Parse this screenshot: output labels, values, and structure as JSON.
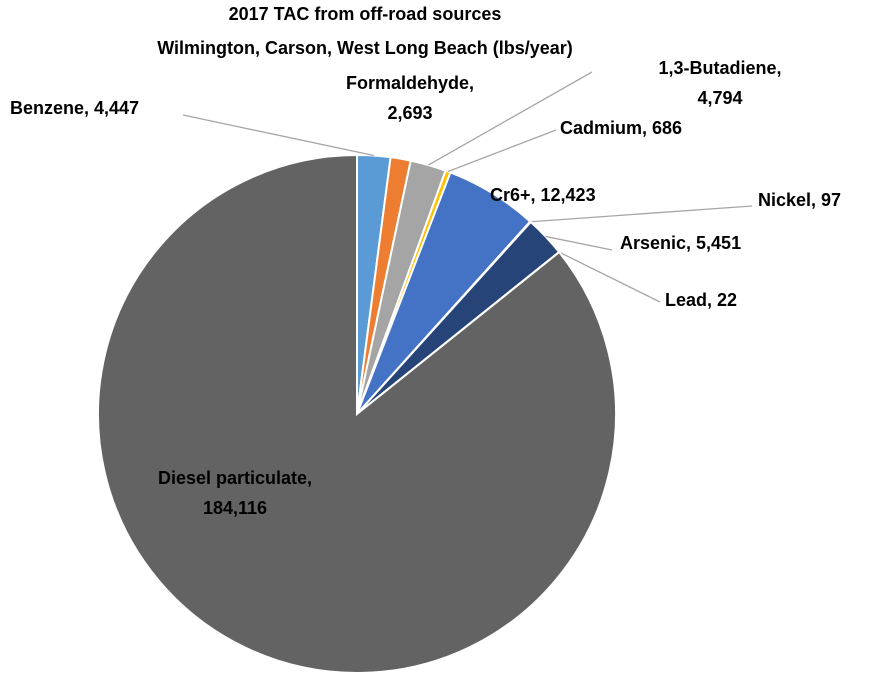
{
  "chart_data": {
    "type": "pie",
    "title": "2017 TAC from off-road sources",
    "subtitle": "Wilmington, Carson, West Long Beach (lbs/year)",
    "values": [
      4447,
      2693,
      4794,
      686,
      12423,
      97,
      5451,
      22,
      184116
    ],
    "value_labels": [
      "Benzene, 4,447",
      "Formaldehyde,\n2,693",
      "1,3-Butadiene,\n4,794",
      "Cadmium, 686",
      "Cr6+, 12,423",
      "Nickel, 97",
      "Arsenic, 5,451",
      "Lead, 22",
      "Diesel particulate,\n184,116"
    ],
    "colors": [
      "#5b9bd5",
      "#ed7d31",
      "#a5a5a5",
      "#ffc000",
      "#4472c4",
      "#70ad47",
      "#264478",
      "#9e480e",
      "#636363"
    ]
  }
}
